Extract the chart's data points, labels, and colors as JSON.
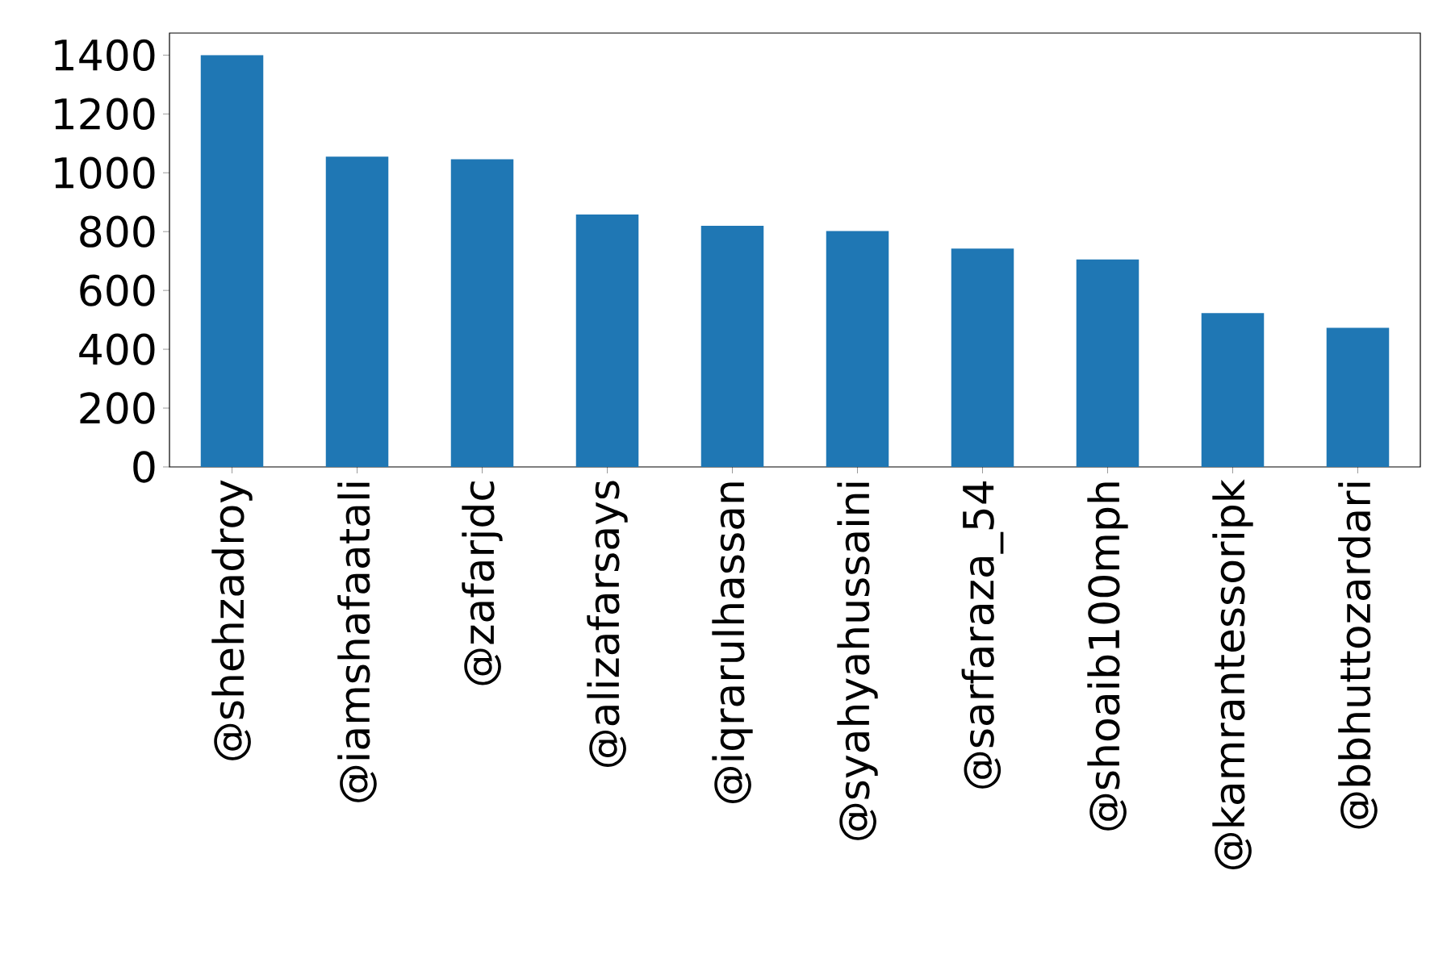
{
  "chart_data": {
    "type": "bar",
    "categories": [
      "@shehzadroy",
      "@iamshafaatali",
      "@zafarjdc",
      "@alizafarsays",
      "@iqrarulhassan",
      "@syahyahussaini",
      "@sarfaraza_54",
      "@shoaib100mph",
      "@kamrantessoripk",
      "@bbhuttozardari"
    ],
    "values": [
      1400,
      1055,
      1046,
      858,
      820,
      802,
      742,
      705,
      523,
      473
    ],
    "color": "#1f77b4",
    "ylim": [
      0,
      1475
    ],
    "yticks": [
      0,
      200,
      400,
      600,
      800,
      1000,
      1200,
      1400
    ]
  }
}
